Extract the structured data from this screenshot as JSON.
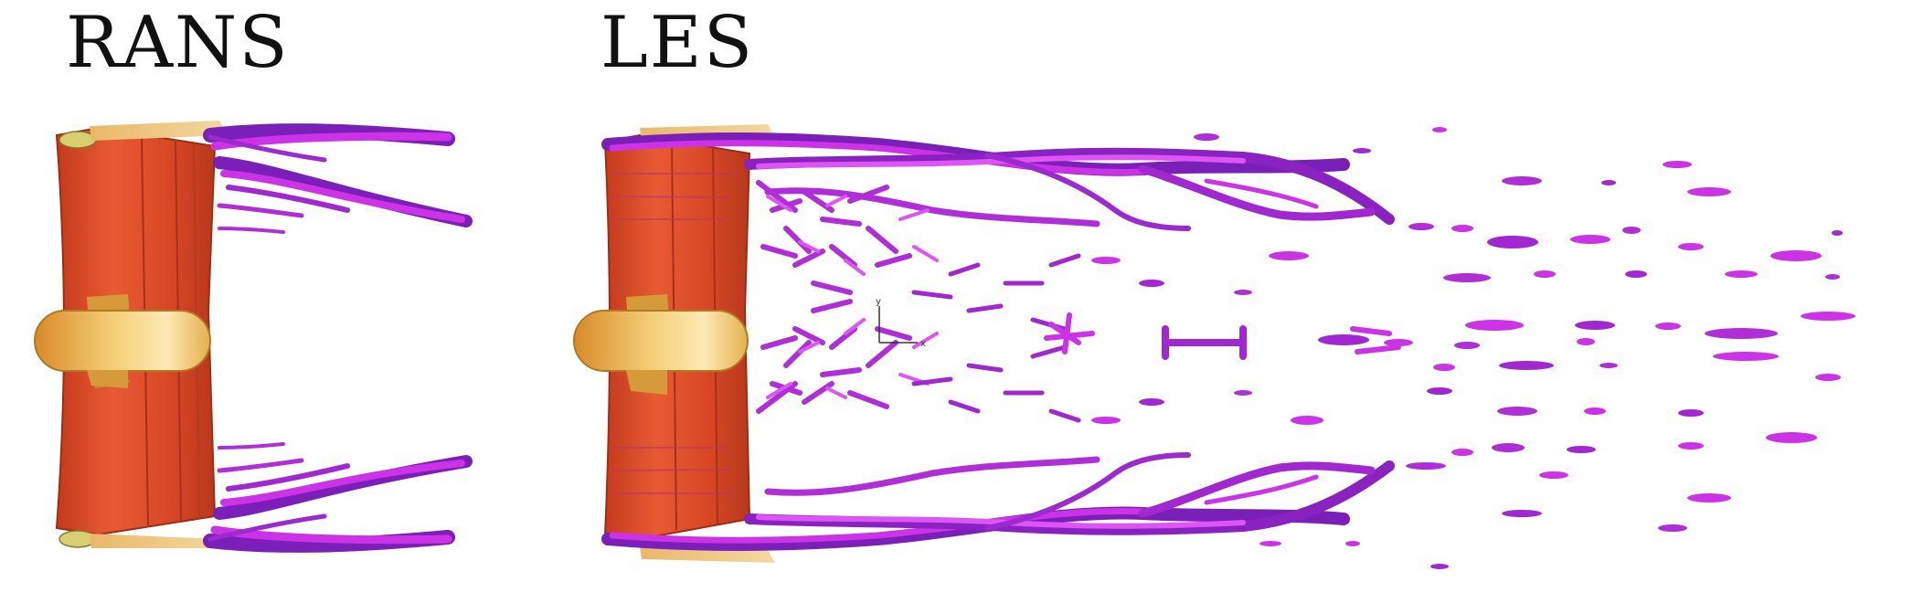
{
  "panels": {
    "left": {
      "title": "RANS"
    },
    "right": {
      "title": "LES"
    }
  },
  "axis_triad": {
    "x": "x",
    "y": "y"
  },
  "colors": {
    "vortex": "#cc33e6",
    "vortex_dark": "#7a1fb8",
    "vortex_light": "#ee66ff",
    "wing": "#e0502e",
    "wing_dark": "#b8381c",
    "endplate": "#e8c070",
    "tire": "#e2a83a",
    "tire_light": "#fbe6a8"
  },
  "icons": [
    "front-wing-shape",
    "tire-shape",
    "vortex-isosurface-shape",
    "axis-triad-icon"
  ]
}
